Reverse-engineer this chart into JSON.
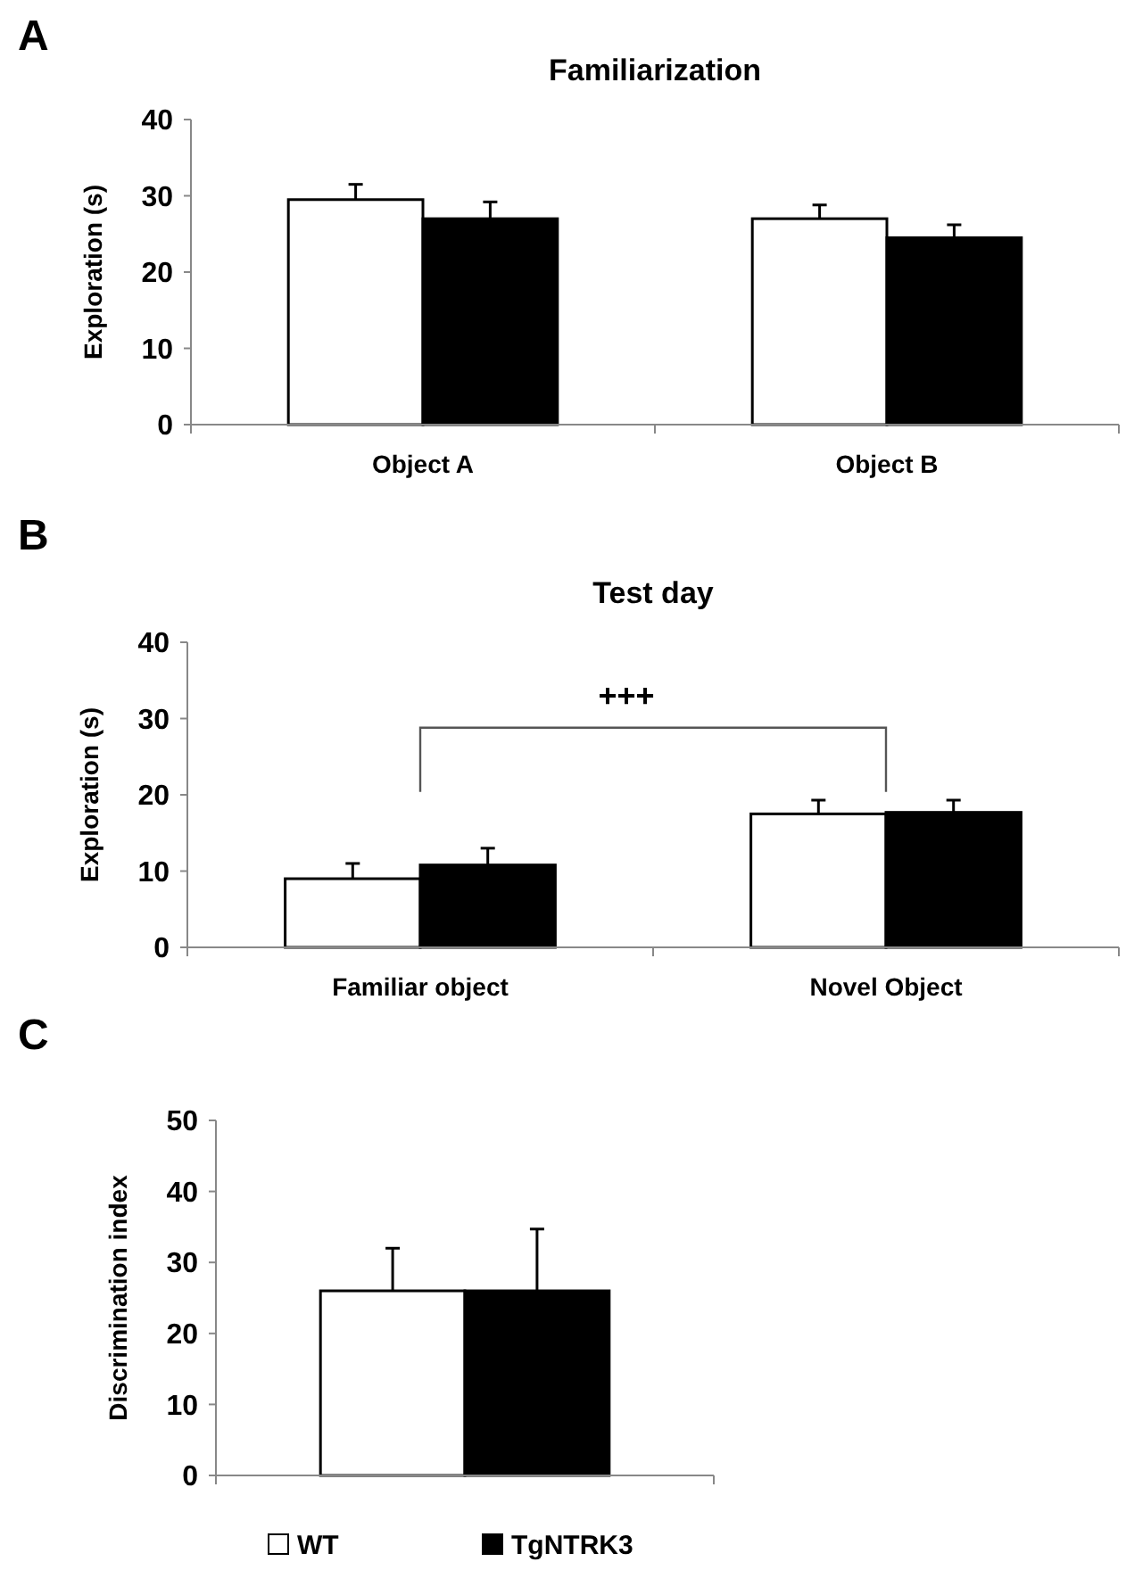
{
  "chart_data": [
    {
      "type": "bar",
      "title": "Familiarization",
      "ylabel": "Exploration (s)",
      "annotations": [
        "A"
      ],
      "categories": [
        "Object A",
        "Object B"
      ],
      "ylim": [
        0,
        40
      ],
      "yticks": [
        0,
        10,
        20,
        30,
        40
      ],
      "grid": false,
      "legend": false,
      "series": [
        {
          "color": "#ffffff",
          "values": [
            29.5,
            27
          ],
          "errors": [
            [
              29.5,
              31.5
            ],
            [
              27,
              28.8
            ]
          ]
        },
        {
          "color": "#000000",
          "values": [
            27,
            24.5
          ],
          "errors": [
            [
              27,
              29.2
            ],
            [
              24.5,
              26.2
            ]
          ]
        }
      ]
    },
    {
      "type": "bar",
      "title": "Test day",
      "ylabel": "Exploration (s)",
      "annotations": [
        "B",
        "+++"
      ],
      "categories": [
        "Familiar object",
        "Novel Object"
      ],
      "ylim": [
        0,
        40
      ],
      "yticks": [
        0,
        10,
        20,
        30,
        40
      ],
      "grid": false,
      "legend": false,
      "series": [
        {
          "color": "#ffffff",
          "values": [
            9,
            17.5
          ],
          "errors": [
            [
              9,
              11
            ],
            [
              17.5,
              19.3
            ]
          ]
        },
        {
          "color": "#000000",
          "values": [
            10.8,
            17.7
          ],
          "errors": [
            [
              10.8,
              13
            ],
            [
              17.7,
              19.3
            ]
          ]
        }
      ]
    },
    {
      "type": "bar",
      "ylabel": "Discrimination index",
      "annotations": [
        "C"
      ],
      "categories": [
        null
      ],
      "ylim": [
        0,
        50
      ],
      "yticks": [
        0,
        10,
        20,
        30,
        40,
        50
      ],
      "grid": false,
      "legend": "bottom",
      "series": [
        {
          "name": "WT",
          "color": "#ffffff",
          "values": [
            26
          ],
          "errors": [
            [
              26,
              32
            ]
          ]
        },
        {
          "name": "TgNTRK3",
          "color": "#000000",
          "values": [
            26
          ],
          "errors": [
            [
              26,
              34.7
            ]
          ]
        }
      ]
    }
  ]
}
